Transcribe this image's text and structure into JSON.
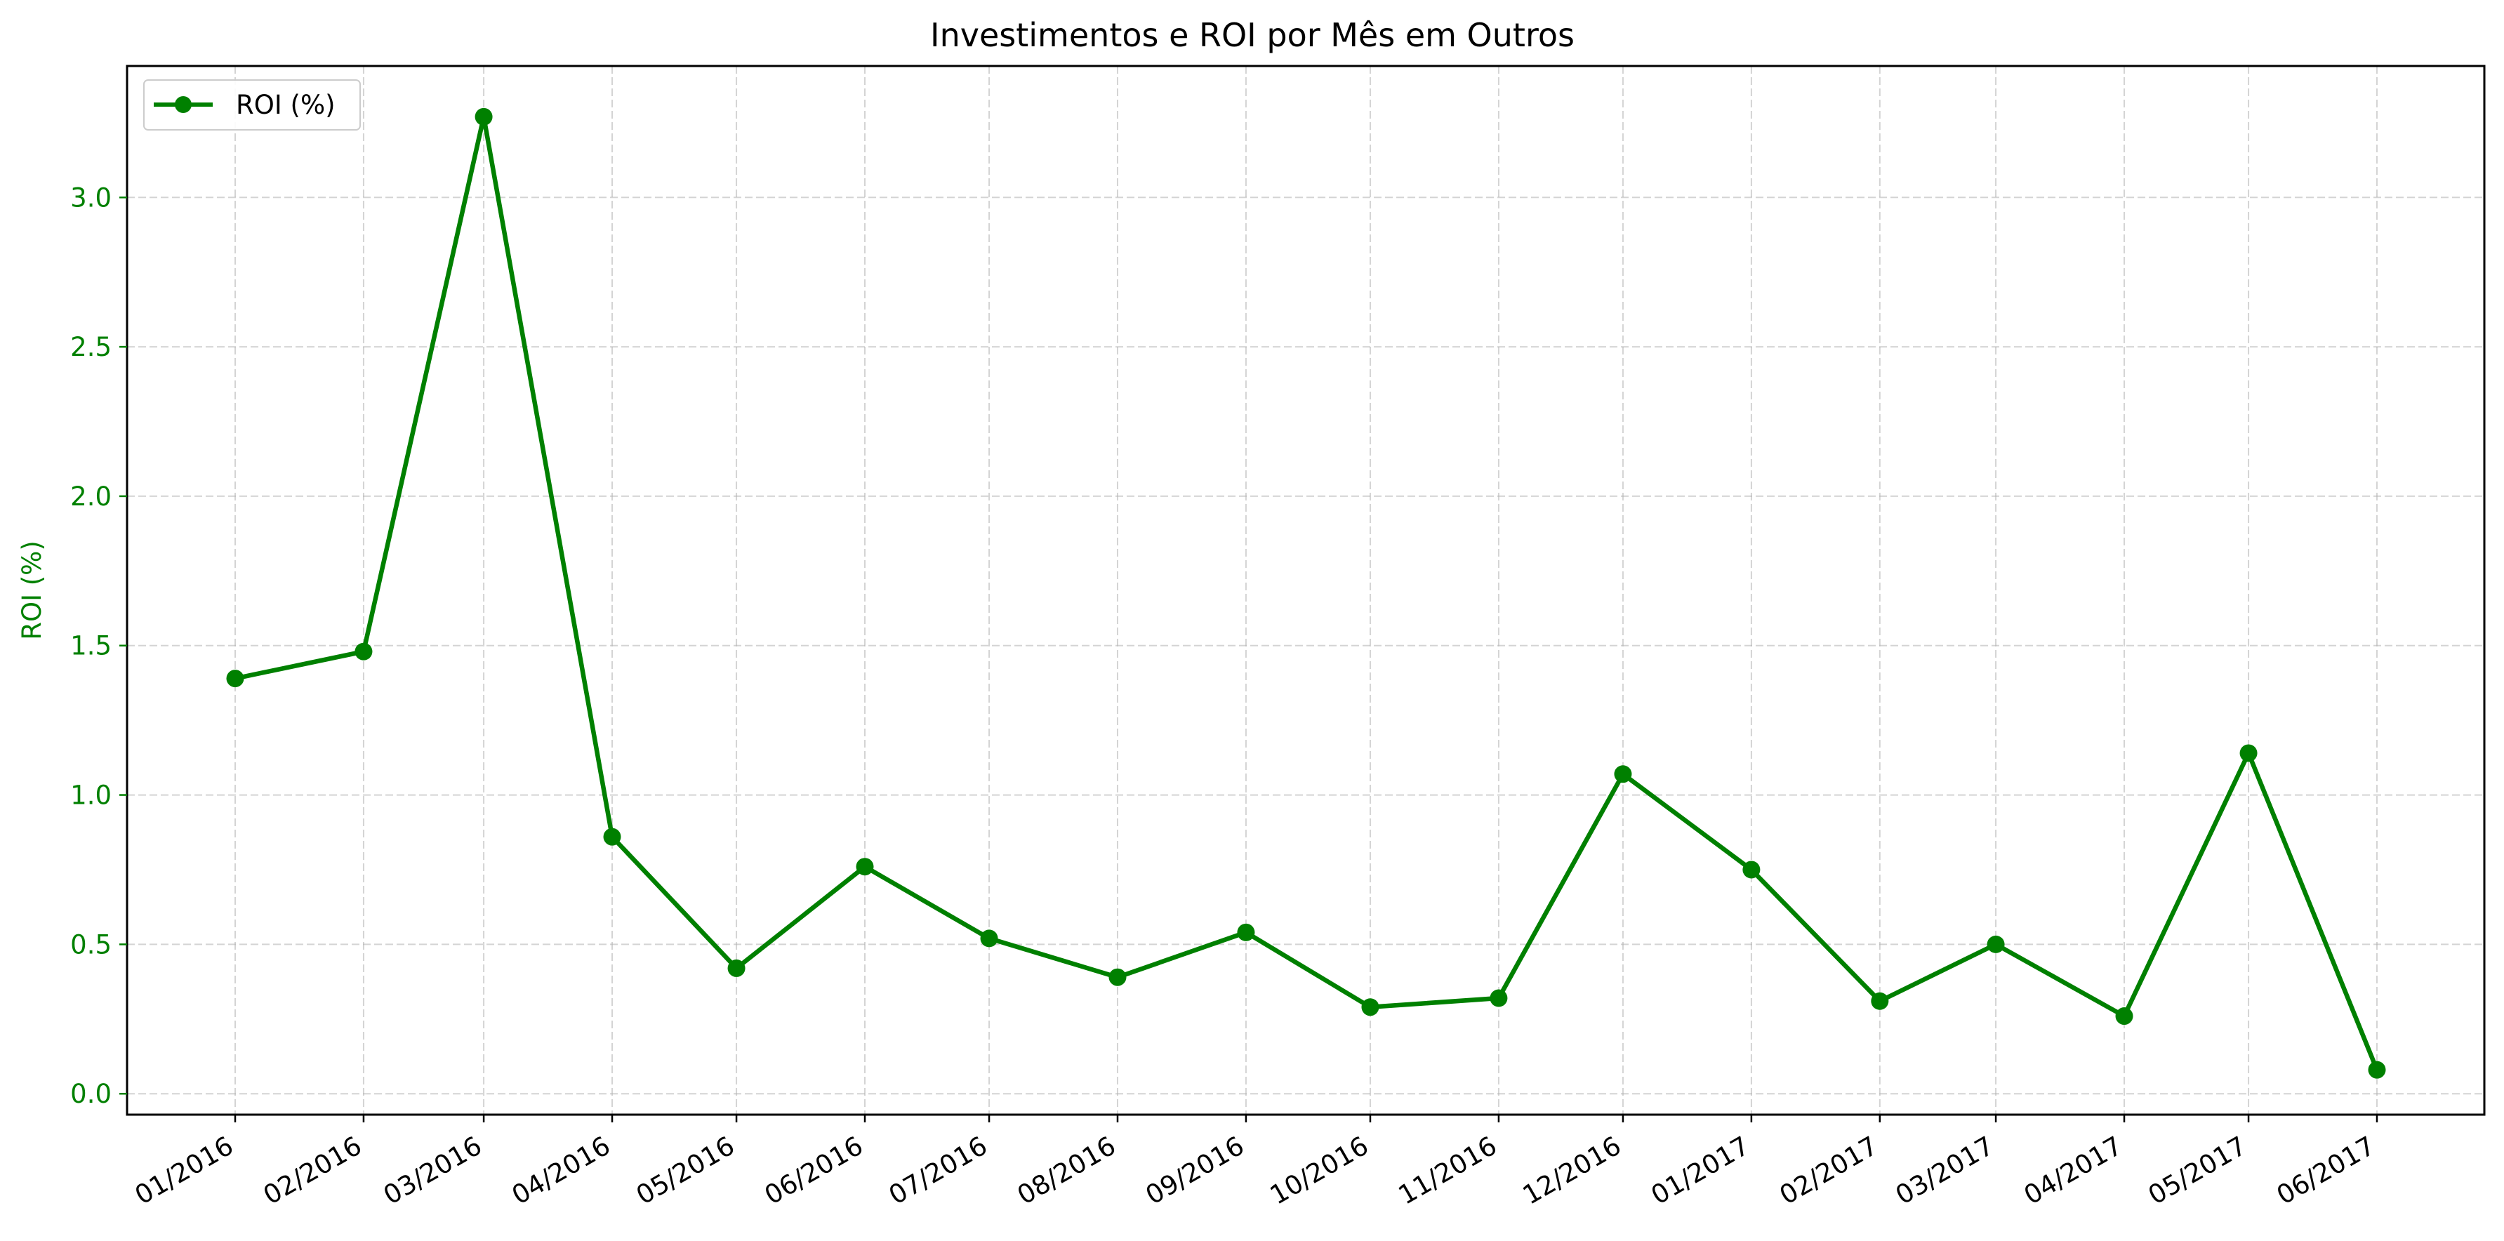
{
  "chart_data": {
    "type": "line",
    "title": "Investimentos e ROI por Mês em Outros",
    "xlabel": "",
    "ylabel": "ROI (%)",
    "categories": [
      "01/2016",
      "02/2016",
      "03/2016",
      "04/2016",
      "05/2016",
      "06/2016",
      "07/2016",
      "08/2016",
      "09/2016",
      "10/2016",
      "11/2016",
      "12/2016",
      "01/2017",
      "02/2017",
      "03/2017",
      "04/2017",
      "05/2017",
      "06/2017"
    ],
    "x_dates": [
      "2016-01-01",
      "2016-02-01",
      "2016-03-01",
      "2016-04-01",
      "2016-05-01",
      "2016-06-01",
      "2016-07-01",
      "2016-08-01",
      "2016-09-01",
      "2016-10-01",
      "2016-11-01",
      "2016-12-01",
      "2017-01-01",
      "2017-02-01",
      "2017-03-01",
      "2017-04-01",
      "2017-05-01",
      "2017-06-01"
    ],
    "series": [
      {
        "name": "ROI (%)",
        "color": "#008000",
        "marker": "circle",
        "values": [
          1.39,
          1.48,
          3.27,
          0.86,
          0.42,
          0.76,
          0.52,
          0.39,
          0.54,
          0.29,
          0.32,
          1.07,
          0.75,
          0.31,
          0.5,
          0.26,
          1.14,
          0.08
        ]
      }
    ],
    "yticks": [
      "0.0",
      "0.5",
      "1.0",
      "1.5",
      "2.0",
      "2.5",
      "3.0"
    ],
    "ylim": [
      -0.07,
      3.44
    ],
    "grid": true,
    "legend_position": "upper-left",
    "axis_color": "#008000"
  }
}
